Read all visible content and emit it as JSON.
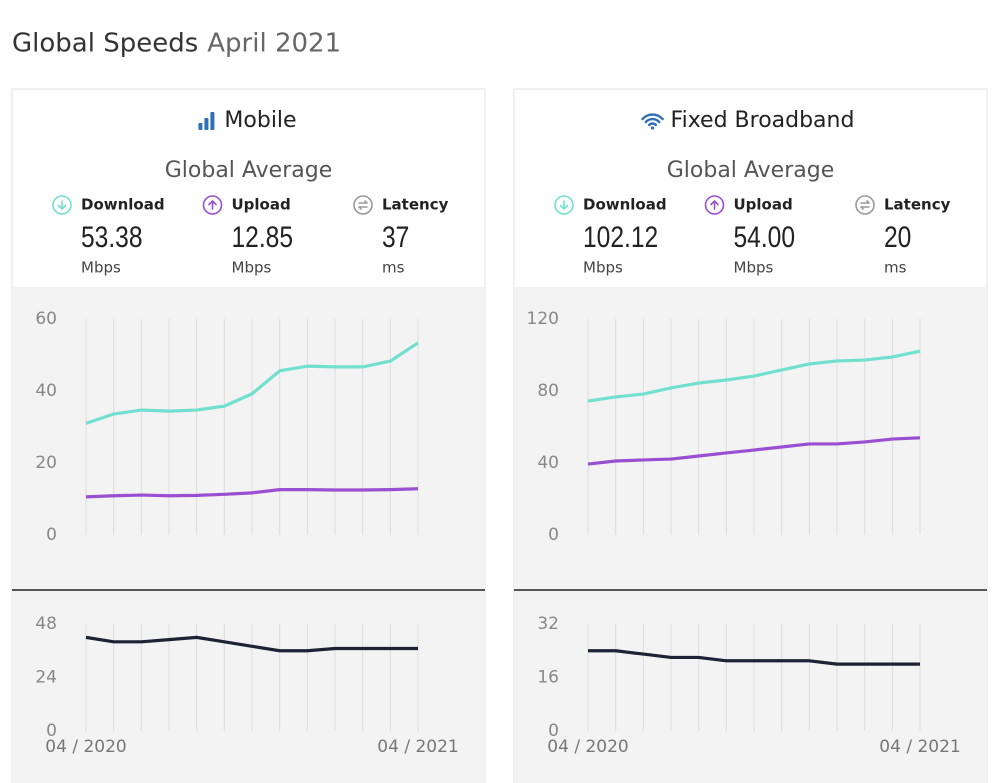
{
  "header": {
    "title": "Global Speeds",
    "subtitle": "April 2021"
  },
  "panels": [
    {
      "title": "Mobile",
      "subtitle": "Global Average",
      "stats": [
        {
          "label": "Download",
          "value": "53.38",
          "unit": "Mbps"
        },
        {
          "label": "Upload",
          "value": "12.85",
          "unit": "Mbps"
        },
        {
          "label": "Latency",
          "value": "37",
          "unit": "ms"
        }
      ]
    },
    {
      "title": "Fixed Broadband",
      "subtitle": "Global Average",
      "stats": [
        {
          "label": "Download",
          "value": "102.12",
          "unit": "Mbps"
        },
        {
          "label": "Upload",
          "value": "54.00",
          "unit": "Mbps"
        },
        {
          "label": "Latency",
          "value": "20",
          "unit": "ms"
        }
      ]
    }
  ],
  "chart_data": [
    {
      "type": "line",
      "grid": true,
      "categories": [
        null,
        null,
        null,
        null,
        null,
        null,
        null,
        null,
        null,
        null,
        null,
        null,
        null
      ],
      "ylim": [
        0,
        60
      ],
      "yticks": [
        0,
        20,
        40,
        60
      ],
      "series": [
        {
          "color": "#72e0cf",
          "values": [
            31,
            33.6,
            34.7,
            34.4,
            34.7,
            35.8,
            39.2,
            45.6,
            46.9,
            46.7,
            46.7,
            48.3,
            53.38
          ]
        },
        {
          "color": "#9a4fd2",
          "values": [
            10.6,
            10.9,
            11.1,
            10.9,
            11.0,
            11.3,
            11.7,
            12.6,
            12.6,
            12.5,
            12.5,
            12.6,
            12.85
          ]
        }
      ]
    },
    {
      "type": "line",
      "grid": true,
      "categories": [
        "04 / 2020",
        null,
        null,
        null,
        null,
        null,
        null,
        null,
        null,
        null,
        null,
        null,
        "04 / 2021"
      ],
      "ylim": [
        0,
        48
      ],
      "yticks": [
        0,
        24,
        48
      ],
      "series": [
        {
          "color": "#1e2235",
          "values": [
            42,
            40,
            40,
            41,
            42,
            40,
            38,
            36,
            36,
            37,
            37,
            37,
            37
          ]
        }
      ]
    },
    {
      "type": "line",
      "grid": true,
      "categories": [
        null,
        null,
        null,
        null,
        null,
        null,
        null,
        null,
        null,
        null,
        null,
        null,
        null
      ],
      "ylim": [
        0,
        120
      ],
      "yticks": [
        0,
        40,
        80,
        120
      ],
      "series": [
        {
          "color": "#72e0cf",
          "values": [
            74.4,
            76.7,
            78.3,
            81.7,
            84.4,
            86.1,
            88.3,
            91.7,
            95,
            96.7,
            97.2,
            98.9,
            102.12
          ]
        },
        {
          "color": "#9a4fd2",
          "values": [
            39.4,
            41.1,
            41.7,
            42.2,
            43.9,
            45.6,
            47.2,
            48.9,
            50.6,
            50.6,
            51.7,
            53.3,
            54.0
          ]
        }
      ]
    },
    {
      "type": "line",
      "grid": true,
      "categories": [
        "04 / 2020",
        null,
        null,
        null,
        null,
        null,
        null,
        null,
        null,
        null,
        null,
        null,
        "04 / 2021"
      ],
      "ylim": [
        0,
        32
      ],
      "yticks": [
        0,
        16,
        32
      ],
      "series": [
        {
          "color": "#1e2235",
          "values": [
            24,
            24,
            23,
            22,
            22,
            21,
            21,
            21,
            21,
            20,
            20,
            20,
            20
          ]
        }
      ]
    }
  ]
}
